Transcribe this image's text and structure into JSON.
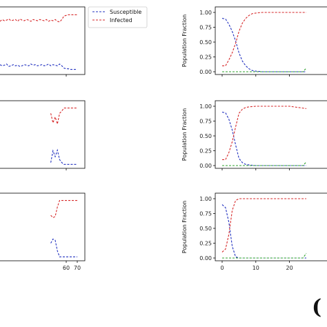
{
  "colors": {
    "susceptible": "#1f2fbf",
    "infected": "#d62728",
    "recovered": "#2ca02c"
  },
  "panel_label_fragment": "(",
  "chart_data": [
    {
      "type": "line",
      "ylim": [
        0,
        1
      ],
      "xlim": [
        0,
        70
      ],
      "grid": false,
      "legend": {
        "placement": "top-right-outside",
        "entries": [
          "Susceptible",
          "Infected"
        ]
      },
      "series": [
        {
          "name": "Susceptible",
          "x": [
            0,
            2,
            4,
            6,
            8,
            10,
            12,
            14,
            16,
            18,
            20,
            22,
            24,
            26,
            28,
            30,
            32,
            34,
            36,
            38,
            40,
            42,
            44,
            46,
            48,
            50,
            52,
            54,
            56,
            58,
            60,
            62,
            64,
            66,
            68,
            70
          ],
          "values": [
            0.12,
            0.1,
            0.11,
            0.13,
            0.09,
            0.1,
            0.12,
            0.1,
            0.11,
            0.09,
            0.1,
            0.12,
            0.11,
            0.1,
            0.13,
            0.11,
            0.12,
            0.1,
            0.11,
            0.12,
            0.1,
            0.11,
            0.13,
            0.1,
            0.12,
            0.11,
            0.1,
            0.13,
            0.1,
            0.06,
            0.05,
            0.05,
            0.04,
            0.04,
            0.04,
            0.04
          ]
        },
        {
          "name": "Infected",
          "x": [
            0,
            2,
            4,
            6,
            8,
            10,
            12,
            14,
            16,
            18,
            20,
            22,
            24,
            26,
            28,
            30,
            32,
            34,
            36,
            38,
            40,
            42,
            44,
            46,
            48,
            50,
            52,
            54,
            56,
            58,
            60,
            62,
            64,
            66,
            68,
            70
          ],
          "values": [
            0.85,
            0.88,
            0.86,
            0.87,
            0.89,
            0.86,
            0.87,
            0.88,
            0.85,
            0.89,
            0.87,
            0.86,
            0.88,
            0.87,
            0.85,
            0.88,
            0.87,
            0.86,
            0.88,
            0.87,
            0.86,
            0.88,
            0.85,
            0.87,
            0.86,
            0.88,
            0.85,
            0.84,
            0.88,
            0.94,
            0.95,
            0.96,
            0.96,
            0.96,
            0.96,
            0.96
          ]
        }
      ]
    },
    {
      "type": "line",
      "ylim": [
        0,
        1
      ],
      "xlim": [
        0,
        70
      ],
      "grid": false,
      "series": [
        {
          "name": "Susceptible",
          "x": [
            46,
            48,
            50,
            52,
            54,
            56,
            58,
            60,
            62,
            64,
            66,
            68,
            70
          ],
          "values": [
            0.05,
            0.25,
            0.15,
            0.26,
            0.1,
            0.05,
            0.02,
            0.02,
            0.02,
            0.02,
            0.02,
            0.02,
            0.02
          ]
        },
        {
          "name": "Infected",
          "x": [
            46,
            48,
            50,
            52,
            54,
            56,
            58,
            60,
            62,
            64,
            66,
            68,
            70
          ],
          "values": [
            0.88,
            0.72,
            0.82,
            0.7,
            0.88,
            0.92,
            0.97,
            0.97,
            0.97,
            0.97,
            0.97,
            0.97,
            0.97
          ]
        }
      ]
    },
    {
      "type": "line",
      "ylim": [
        0,
        1
      ],
      "xlim": [
        0,
        70
      ],
      "grid": false,
      "xticks": [
        60,
        70
      ],
      "series": [
        {
          "name": "Susceptible",
          "x": [
            46,
            48,
            50,
            52,
            54,
            56,
            58,
            60,
            62,
            64,
            66,
            68,
            70
          ],
          "values": [
            0.25,
            0.32,
            0.3,
            0.12,
            0.02,
            0.02,
            0.02,
            0.02,
            0.02,
            0.02,
            0.02,
            0.02,
            0.02
          ]
        },
        {
          "name": "Infected",
          "x": [
            46,
            48,
            50,
            52,
            54,
            56,
            58,
            60,
            62,
            64,
            66,
            68,
            70
          ],
          "values": [
            0.72,
            0.68,
            0.7,
            0.86,
            0.97,
            0.97,
            0.97,
            0.97,
            0.97,
            0.97,
            0.97,
            0.97,
            0.97
          ]
        }
      ]
    },
    {
      "type": "line",
      "ylabel": "Population Fraction",
      "ylim": [
        0,
        1
      ],
      "xlim": [
        0,
        25
      ],
      "yticks": [
        "0.00",
        "0.25",
        "0.50",
        "0.75",
        "1.00"
      ],
      "grid": false,
      "series": [
        {
          "name": "Susceptible",
          "x": [
            0,
            1,
            2,
            3,
            4,
            5,
            6,
            7,
            8,
            9,
            10,
            12,
            15,
            20,
            25
          ],
          "values": [
            0.9,
            0.89,
            0.8,
            0.68,
            0.52,
            0.32,
            0.18,
            0.1,
            0.05,
            0.02,
            0.01,
            0.0,
            0.0,
            0.0,
            0.0
          ]
        },
        {
          "name": "Infected",
          "x": [
            0,
            1,
            2,
            3,
            4,
            5,
            6,
            7,
            8,
            9,
            10,
            12,
            15,
            20,
            25
          ],
          "values": [
            0.1,
            0.1,
            0.2,
            0.32,
            0.48,
            0.68,
            0.82,
            0.9,
            0.95,
            0.98,
            0.99,
            1.0,
            1.0,
            1.0,
            1.0
          ]
        },
        {
          "name": "Recovered",
          "x": [
            0,
            5,
            10,
            15,
            20,
            24,
            25
          ],
          "values": [
            0.0,
            0.0,
            0.0,
            0.0,
            0.0,
            0.0,
            0.06
          ]
        }
      ]
    },
    {
      "type": "line",
      "ylabel": "Population Fraction",
      "ylim": [
        0,
        1
      ],
      "xlim": [
        0,
        25
      ],
      "yticks": [
        "0.00",
        "0.25",
        "0.50",
        "0.75",
        "1.00"
      ],
      "grid": false,
      "series": [
        {
          "name": "Susceptible",
          "x": [
            0,
            1,
            2,
            3,
            4,
            5,
            6,
            7,
            8,
            10,
            12,
            15,
            20,
            25
          ],
          "values": [
            0.9,
            0.89,
            0.78,
            0.6,
            0.35,
            0.12,
            0.05,
            0.02,
            0.01,
            0.0,
            0.0,
            0.0,
            0.0,
            0.0
          ]
        },
        {
          "name": "Infected",
          "x": [
            0,
            1,
            2,
            3,
            4,
            5,
            6,
            7,
            8,
            10,
            12,
            15,
            20,
            25
          ],
          "values": [
            0.1,
            0.1,
            0.22,
            0.4,
            0.65,
            0.88,
            0.95,
            0.98,
            0.99,
            1.0,
            1.0,
            1.0,
            1.0,
            0.96
          ]
        },
        {
          "name": "Recovered",
          "x": [
            0,
            5,
            10,
            15,
            20,
            24,
            25
          ],
          "values": [
            0.0,
            0.0,
            0.0,
            0.0,
            0.0,
            0.0,
            0.06
          ]
        }
      ]
    },
    {
      "type": "line",
      "ylabel": "Population Fraction",
      "ylim": [
        0,
        1
      ],
      "xlim": [
        0,
        25
      ],
      "xticks": [
        "0",
        "10",
        "20"
      ],
      "yticks": [
        "0.00",
        "0.25",
        "0.50",
        "0.75",
        "1.00"
      ],
      "grid": false,
      "series": [
        {
          "name": "Susceptible",
          "x": [
            0,
            1,
            2,
            3,
            4,
            5,
            6,
            8,
            10,
            12,
            15,
            20,
            25
          ],
          "values": [
            0.9,
            0.85,
            0.6,
            0.2,
            0.02,
            0.0,
            0.0,
            0.0,
            0.0,
            0.0,
            0.0,
            0.0,
            0.0
          ]
        },
        {
          "name": "Infected",
          "x": [
            0,
            1,
            2,
            3,
            4,
            5,
            6,
            8,
            10,
            12,
            15,
            20,
            25
          ],
          "values": [
            0.1,
            0.15,
            0.4,
            0.8,
            0.97,
            1.0,
            1.0,
            1.0,
            1.0,
            1.0,
            1.0,
            1.0,
            1.0
          ]
        },
        {
          "name": "Recovered",
          "x": [
            0,
            5,
            10,
            15,
            20,
            24,
            25
          ],
          "values": [
            0.0,
            0.0,
            0.0,
            0.0,
            0.0,
            0.0,
            0.08
          ]
        }
      ]
    }
  ]
}
